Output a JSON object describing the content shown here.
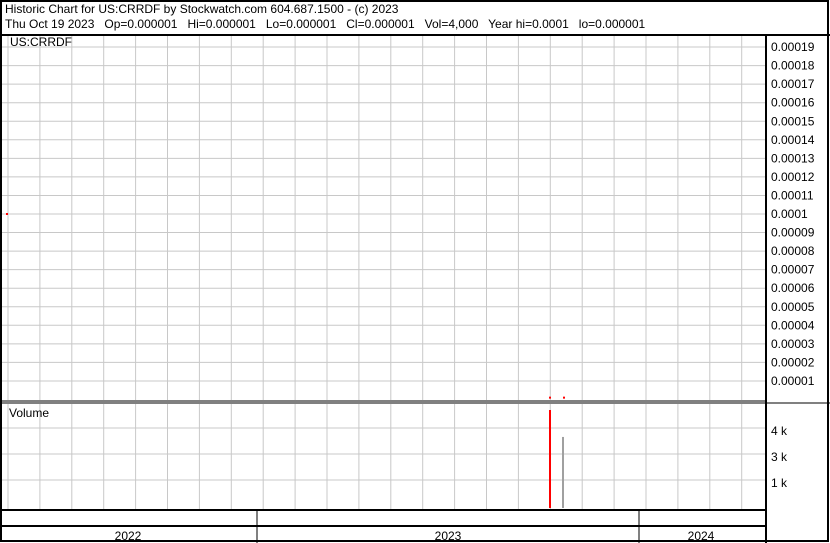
{
  "header": {
    "title": "Historic Chart for US:CRRDF by Stockwatch.com 604.687.1500 - (c) 2023",
    "quote": "Thu Oct 19 2023   Op=0.000001   Hi=0.000001   Lo=0.000001   Cl=0.000001   Vol=4,000   Year hi=0.0001   lo=0.000001"
  },
  "chart_data": [
    {
      "type": "scatter",
      "title": "US:CRRDF",
      "ylim": [
        0,
        0.0002
      ],
      "yticks": [
        "0.00001",
        "0.00002",
        "0.00003",
        "0.00004",
        "0.00005",
        "0.00006",
        "0.00007",
        "0.00008",
        "0.00009",
        "0.0001",
        "0.00011",
        "0.00012",
        "0.00013",
        "0.00014",
        "0.00015",
        "0.00016",
        "0.00017",
        "0.00018",
        "0.00019"
      ],
      "grid": true,
      "points": [
        {
          "x": "2021-10",
          "y": 0.0001,
          "color": "#ff0000"
        },
        {
          "x": "2023-10-19",
          "y": 1e-06,
          "color": "#ff0000"
        },
        {
          "x": "2023-11",
          "y": 1e-06,
          "color": "#ff0000"
        }
      ]
    },
    {
      "type": "bar",
      "title": "Volume",
      "yticks": [
        "1 k",
        "3 k",
        "4 k"
      ],
      "grid": true,
      "bars": [
        {
          "x": "2023-10-19",
          "value": 4000,
          "color": "#ff0000"
        },
        {
          "x": "2023-11",
          "value": 2900,
          "color": "#a0a0a0"
        }
      ]
    }
  ],
  "xaxis": {
    "years": [
      "2022",
      "2023",
      "2024"
    ]
  }
}
